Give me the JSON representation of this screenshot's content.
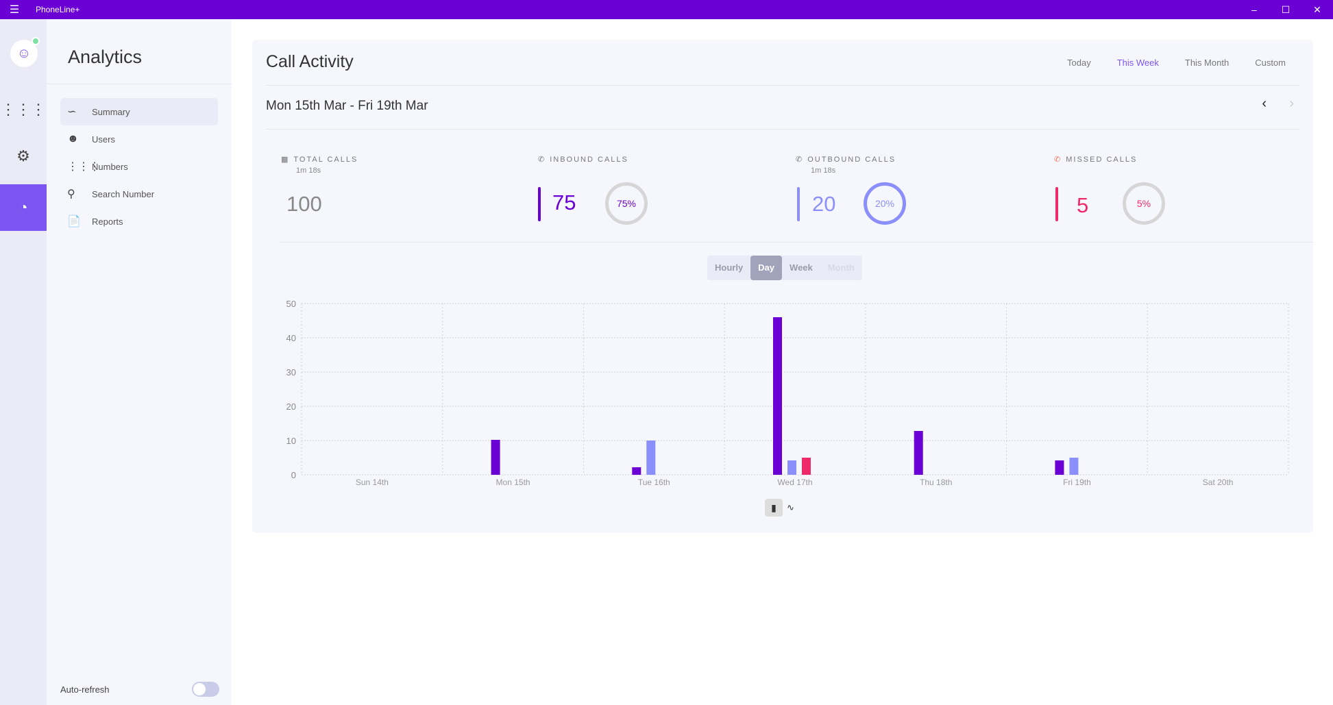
{
  "app": {
    "title": "PhoneLine+",
    "menu_icon": "hamburger-icon",
    "window_controls": [
      "minimize",
      "maximize",
      "close"
    ]
  },
  "rail": {
    "status_color": "#7fe0a5",
    "items": [
      "dialpad-icon",
      "settings-icon",
      "analytics-icon"
    ],
    "active": "analytics-icon"
  },
  "sidebar": {
    "title": "Analytics",
    "items": [
      {
        "label": "Summary",
        "icon": "trend-icon",
        "selected": true
      },
      {
        "label": "Users",
        "icon": "user-icon"
      },
      {
        "label": "Numbers",
        "icon": "dialpad-icon"
      },
      {
        "label": "Search Number",
        "icon": "search-icon"
      },
      {
        "label": "Reports",
        "icon": "document-icon"
      }
    ],
    "auto_refresh": {
      "label": "Auto-refresh",
      "on": false
    }
  },
  "card": {
    "title": "Call Activity",
    "ranges": [
      "Today",
      "This Week",
      "This Month",
      "Custom"
    ],
    "active_range": "This Week",
    "date_range": "Mon 15th Mar - Fri 19th Mar"
  },
  "stats": {
    "total": {
      "label": "TOTAL CALLS",
      "sub": "1m 18s",
      "value": "100"
    },
    "inbound": {
      "label": "INBOUND CALLS",
      "value": "75",
      "pct": "75%",
      "color": "#6a00d4"
    },
    "outbound": {
      "label": "OUTBOUND CALLS",
      "sub": "1m 18s",
      "value": "20",
      "pct": "20%",
      "color": "#8a8ffb"
    },
    "missed": {
      "label": "MISSED CALLS",
      "value": "5",
      "pct": "5%",
      "color": "#ee2a6b"
    }
  },
  "granularity": {
    "options": [
      "Hourly",
      "Day",
      "Week",
      "Month"
    ],
    "active": "Day",
    "disabled": [
      "Month"
    ]
  },
  "chart_data": {
    "type": "bar",
    "categories": [
      "Sun 14th",
      "Mon 15th",
      "Tue 16th",
      "Wed 17th",
      "Thu 18th",
      "Fri 19th",
      "Sat 20th"
    ],
    "series": [
      {
        "key": "inbound",
        "color": "#6a00d4",
        "values": [
          0,
          10.2,
          2.2,
          46,
          12.8,
          4.2,
          0
        ]
      },
      {
        "key": "outbound",
        "color": "#8a8ffb",
        "values": [
          0,
          0,
          10,
          4.2,
          0,
          5,
          0
        ]
      },
      {
        "key": "missed",
        "color": "#ee2a6b",
        "values": [
          0,
          0,
          0,
          5,
          0,
          0,
          0
        ]
      }
    ],
    "ylim": [
      0,
      50
    ],
    "yticks": [
      0,
      10,
      20,
      30,
      40,
      50
    ],
    "grid": true
  },
  "chart_type_toggle": {
    "options": [
      "bar-chart-icon",
      "line-chart-icon"
    ],
    "active": "bar-chart-icon"
  }
}
